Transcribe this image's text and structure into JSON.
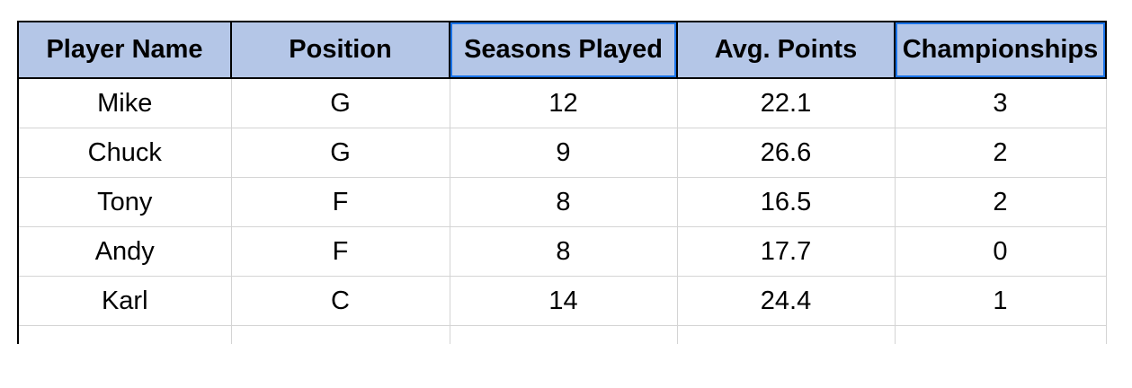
{
  "table": {
    "headers": [
      "Player Name",
      "Position",
      "Seasons Played",
      "Avg. Points",
      "Championships"
    ],
    "rows": [
      [
        "Mike",
        "G",
        "12",
        "22.1",
        "3"
      ],
      [
        "Chuck",
        "G",
        "9",
        "26.6",
        "2"
      ],
      [
        "Tony",
        "F",
        "8",
        "16.5",
        "2"
      ],
      [
        "Andy",
        "F",
        "8",
        "17.7",
        "0"
      ],
      [
        "Karl",
        "C",
        "14",
        "24.4",
        "1"
      ]
    ]
  },
  "colors": {
    "header_fill": "#b4c6e7",
    "gridline": "#d4d4d4",
    "selection": "#1a73e8"
  }
}
